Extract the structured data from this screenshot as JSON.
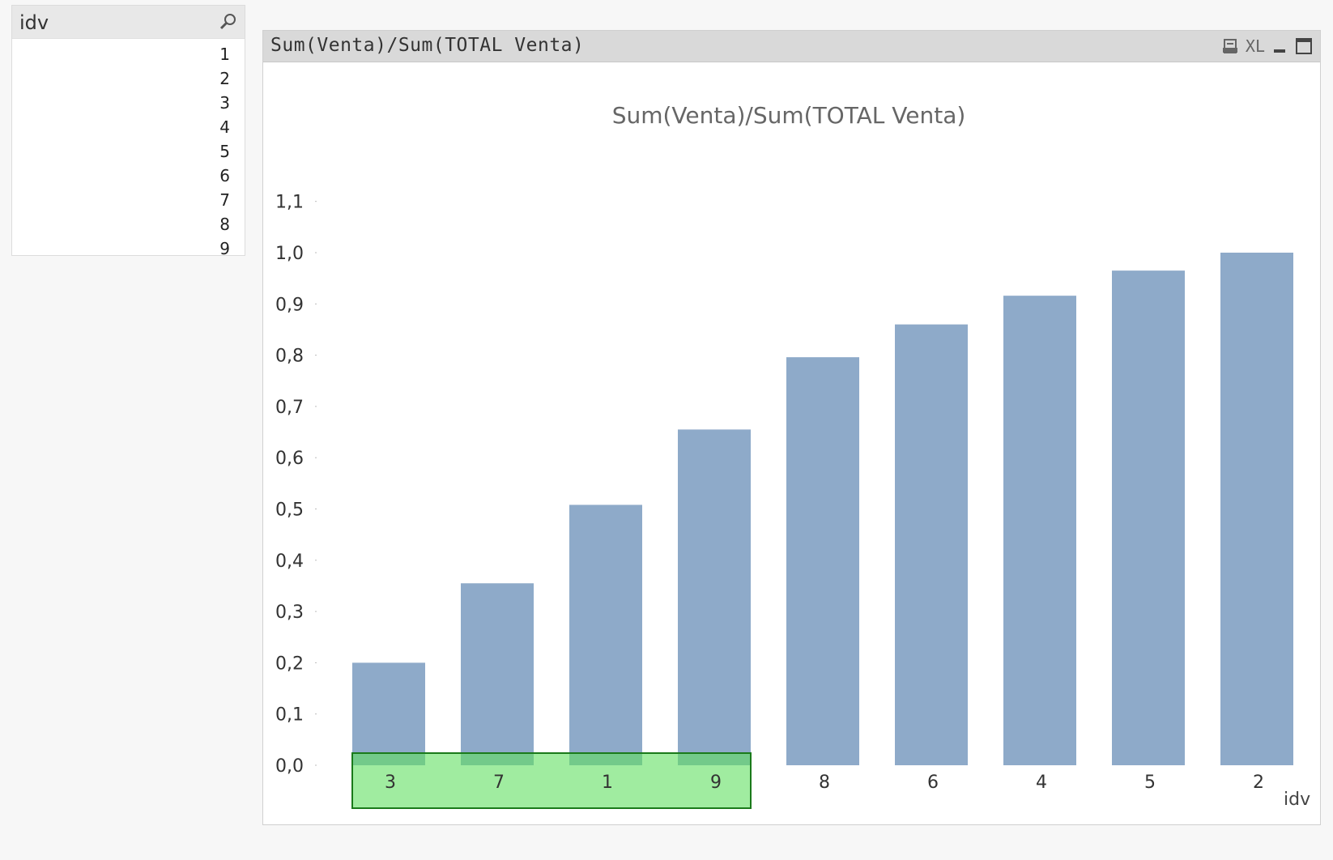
{
  "listbox": {
    "title": "idv",
    "icon": "search-icon",
    "items": [
      "1",
      "2",
      "3",
      "4",
      "5",
      "6",
      "7",
      "8",
      "9"
    ]
  },
  "chart_window": {
    "caption": "Sum(Venta)/Sum(TOTAL Venta)",
    "caption_icons": [
      "print-icon",
      "xl-export-icon",
      "minimize-icon",
      "maximize-icon"
    ],
    "xl_label": "XL"
  },
  "chart_data": {
    "type": "bar",
    "title": "Sum(Venta)/Sum(TOTAL Venta)",
    "xlabel": "idv",
    "ylabel": "",
    "categories": [
      "3",
      "7",
      "1",
      "9",
      "8",
      "6",
      "4",
      "5",
      "2"
    ],
    "values": [
      0.2,
      0.355,
      0.508,
      0.655,
      0.796,
      0.86,
      0.916,
      0.965,
      1.0
    ],
    "ylim": [
      0,
      1.1
    ],
    "yticks": [
      "0,0",
      "0,1",
      "0,2",
      "0,3",
      "0,4",
      "0,5",
      "0,6",
      "0,7",
      "0,8",
      "0,9",
      "1,0",
      "1,1"
    ],
    "bar_color": "#8eaac9",
    "selection_color": "#60e060",
    "selected_categories": [
      "3",
      "7",
      "1",
      "9"
    ],
    "grid": false,
    "legend": "none"
  }
}
